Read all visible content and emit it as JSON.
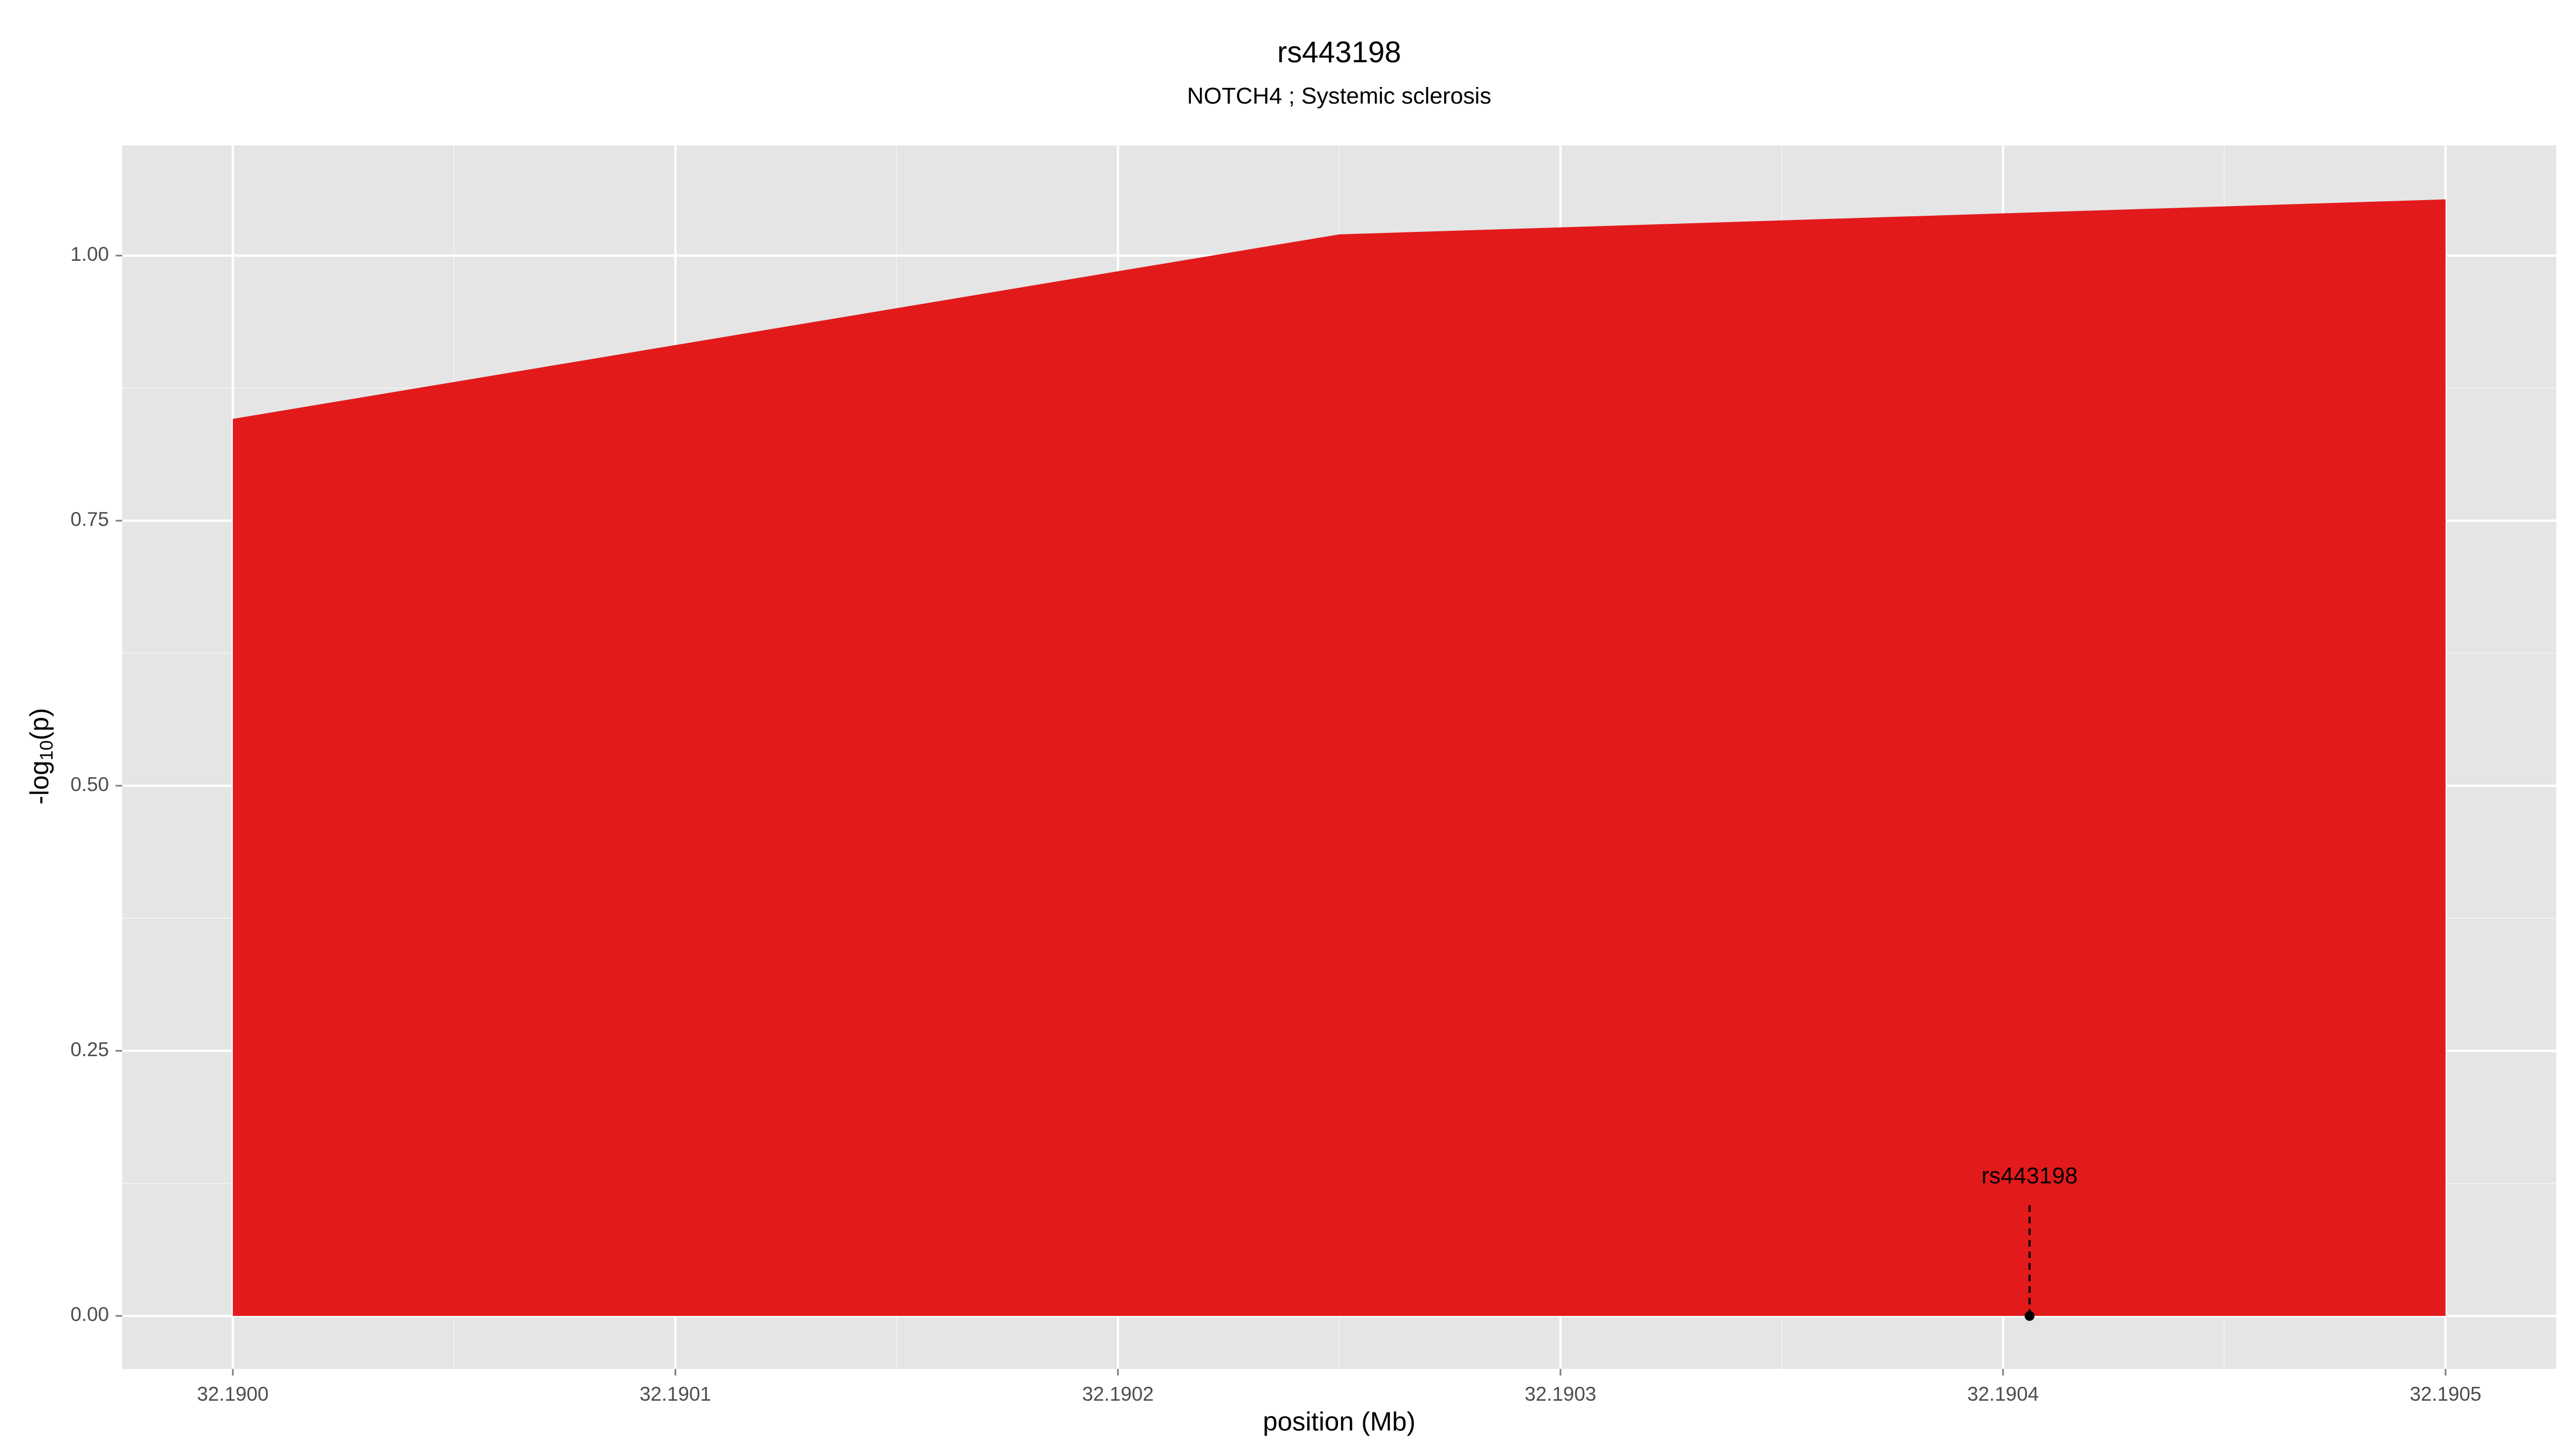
{
  "chart_data": {
    "type": "area",
    "title": "rs443198",
    "subtitle": "NOTCH4 ; Systemic sclerosis",
    "xlabel": "position (Mb)",
    "ylabel": [
      "-log",
      "10",
      "(p)"
    ],
    "x": [
      32.19,
      32.19025,
      32.1905
    ],
    "series": [
      {
        "color": "#e31a1c",
        "values": [
          0.846,
          1.02,
          1.053
        ]
      }
    ],
    "xlim": [
      32.189975,
      32.190525
    ],
    "ylim": [
      -0.05,
      1.104
    ],
    "xticks": [
      {
        "value": 32.19,
        "label": "32.1900"
      },
      {
        "value": 32.1901,
        "label": "32.1901"
      },
      {
        "value": 32.1902,
        "label": "32.1902"
      },
      {
        "value": 32.1903,
        "label": "32.1903"
      },
      {
        "value": 32.1904,
        "label": "32.1904"
      },
      {
        "value": 32.1905,
        "label": "32.1905"
      }
    ],
    "xminorticks": [
      32.19005,
      32.19015,
      32.19025,
      32.19035,
      32.19045
    ],
    "yticks": [
      {
        "value": 0,
        "label": "0.00"
      },
      {
        "value": 0.25,
        "label": "0.25"
      },
      {
        "value": 0.5,
        "label": "0.50"
      },
      {
        "value": 0.75,
        "label": "0.75"
      },
      {
        "value": 1,
        "label": "1.00"
      }
    ],
    "yminorticks": [
      0.125,
      0.375,
      0.625,
      0.875
    ],
    "grid": true,
    "annotations": [
      {
        "label": "rs443198",
        "x": 32.190406,
        "y": 0
      }
    ]
  }
}
